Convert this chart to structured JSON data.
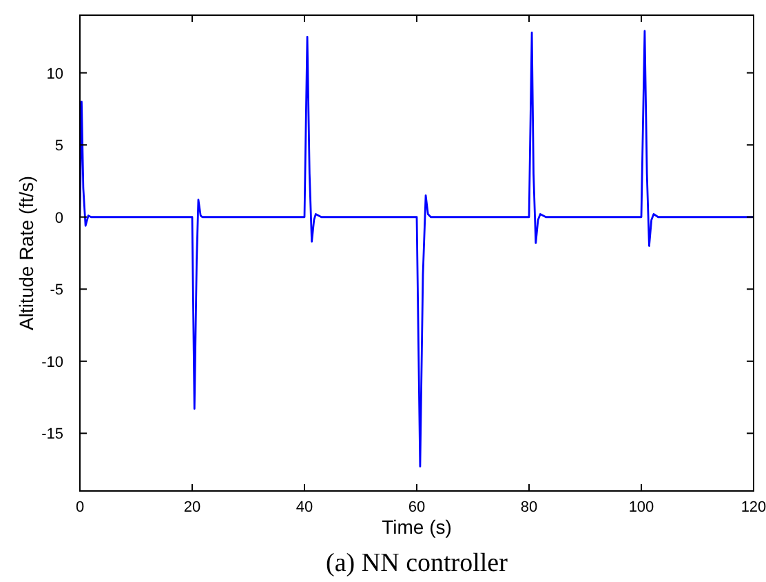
{
  "chart_data": {
    "type": "line",
    "xlabel": "Time (s)",
    "ylabel": "Altitude Rate (ft/s)",
    "annotations": [
      "(a) NN controller"
    ],
    "x": [
      0,
      0.3,
      0.6,
      1.0,
      1.5,
      2,
      20,
      20.4,
      20.8,
      21.1,
      21.5,
      21.8,
      40,
      40.5,
      40.9,
      41.3,
      41.7,
      42,
      43,
      60,
      60.6,
      61.1,
      61.6,
      62,
      62.5,
      80,
      80.5,
      80.8,
      81.2,
      81.6,
      82,
      83,
      100,
      100.6,
      101,
      101.4,
      101.8,
      102.2,
      103,
      120
    ],
    "series": [
      {
        "color": "#0000ff",
        "values": [
          0,
          8,
          2,
          -0.6,
          0.1,
          0,
          0,
          -13.3,
          -3,
          1.2,
          0.1,
          0,
          0,
          12.5,
          3,
          -1.7,
          -0.2,
          0.2,
          0,
          0,
          -17.3,
          -4,
          1.5,
          0.2,
          0,
          0,
          12.8,
          3,
          -1.8,
          -0.2,
          0.2,
          0,
          0,
          12.9,
          3,
          -2,
          -0.2,
          0.2,
          0,
          0
        ]
      }
    ],
    "xlim": [
      0,
      120
    ],
    "xticks": [
      0,
      20,
      40,
      60,
      80,
      100,
      120
    ],
    "ylim": [
      -19,
      14
    ],
    "yticks": [
      -15,
      -10,
      -5,
      0,
      5,
      10
    ],
    "grid": false,
    "line_style": "solid"
  }
}
